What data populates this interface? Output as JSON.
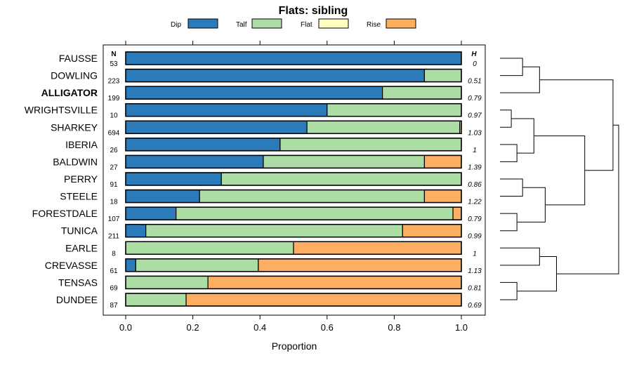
{
  "chart_data": {
    "type": "bar",
    "stacked": true,
    "orientation": "horizontal",
    "title": "Flats: sibling",
    "xlabel": "Proportion",
    "xlim": [
      0,
      1
    ],
    "xticks": [
      "0.0",
      "0.2",
      "0.4",
      "0.6",
      "0.8",
      "1.0"
    ],
    "n_header": "N",
    "h_header": "H",
    "legend": [
      {
        "name": "Dip",
        "color": "#2b7bba"
      },
      {
        "name": "Talf",
        "color": "#abdda4"
      },
      {
        "name": "Flat",
        "color": "#ffffbf"
      },
      {
        "name": "Rise",
        "color": "#fdae61"
      }
    ],
    "categories": [
      "FAUSSE",
      "DOWLING",
      "ALLIGATOR",
      "WRIGHTSVILLE",
      "SHARKEY",
      "IBERIA",
      "BALDWIN",
      "PERRY",
      "STEELE",
      "FORESTDALE",
      "TUNICA",
      "EARLE",
      "CREVASSE",
      "TENSAS",
      "DUNDEE"
    ],
    "bold_category": "ALLIGATOR",
    "n": [
      "53",
      "223",
      "199",
      "10",
      "694",
      "26",
      "27",
      "91",
      "18",
      "107",
      "211",
      "8",
      "61",
      "69",
      "87"
    ],
    "h": [
      "0",
      "0.51",
      "0.79",
      "0.97",
      "1.03",
      "1",
      "1.39",
      "0.86",
      "1.22",
      "0.79",
      "0.99",
      "1",
      "1.13",
      "0.81",
      "0.69"
    ],
    "series": [
      {
        "name": "Dip",
        "values": [
          1.0,
          0.89,
          0.765,
          0.6,
          0.54,
          0.46,
          0.41,
          0.285,
          0.22,
          0.15,
          0.06,
          0.0,
          0.03,
          0.0,
          0.0
        ]
      },
      {
        "name": "Talf",
        "values": [
          0.0,
          0.11,
          0.235,
          0.4,
          0.455,
          0.54,
          0.48,
          0.715,
          0.67,
          0.825,
          0.765,
          0.5,
          0.365,
          0.245,
          0.18
        ]
      },
      {
        "name": "Flat",
        "values": [
          0.0,
          0.0,
          0.0,
          0.0,
          0.0,
          0.0,
          0.0,
          0.0,
          0.0,
          0.0,
          0.0,
          0.0,
          0.0,
          0.0,
          0.0
        ]
      },
      {
        "name": "Rise",
        "values": [
          0.0,
          0.0,
          0.0,
          0.0,
          0.005,
          0.0,
          0.11,
          0.0,
          0.11,
          0.025,
          0.175,
          0.5,
          0.605,
          0.755,
          0.82
        ]
      }
    ],
    "dendrogram": [
      {
        "id": "a",
        "children": [
          0,
          1
        ],
        "height": 0.2
      },
      {
        "id": "b",
        "children": [
          "a",
          2
        ],
        "height": 0.35
      },
      {
        "id": "c",
        "children": [
          3,
          4
        ],
        "height": 0.1
      },
      {
        "id": "d",
        "children": [
          5,
          6
        ],
        "height": 0.15
      },
      {
        "id": "e",
        "children": [
          "c",
          "d"
        ],
        "height": 0.3
      },
      {
        "id": "f",
        "children": [
          7,
          8
        ],
        "height": 0.2
      },
      {
        "id": "g",
        "children": [
          9,
          10
        ],
        "height": 0.15
      },
      {
        "id": "h",
        "children": [
          "f",
          "g"
        ],
        "height": 0.4
      },
      {
        "id": "i",
        "children": [
          "e",
          "h"
        ],
        "height": 0.75
      },
      {
        "id": "j",
        "children": [
          "b",
          "i"
        ],
        "height": 1.0
      },
      {
        "id": "k",
        "children": [
          11,
          12
        ],
        "height": 0.35
      },
      {
        "id": "l",
        "children": [
          13,
          14
        ],
        "height": 0.15
      },
      {
        "id": "m",
        "children": [
          "k",
          "l"
        ],
        "height": 0.5
      },
      {
        "id": "n",
        "children": [
          "j",
          "m"
        ],
        "height": 1.05
      }
    ]
  }
}
